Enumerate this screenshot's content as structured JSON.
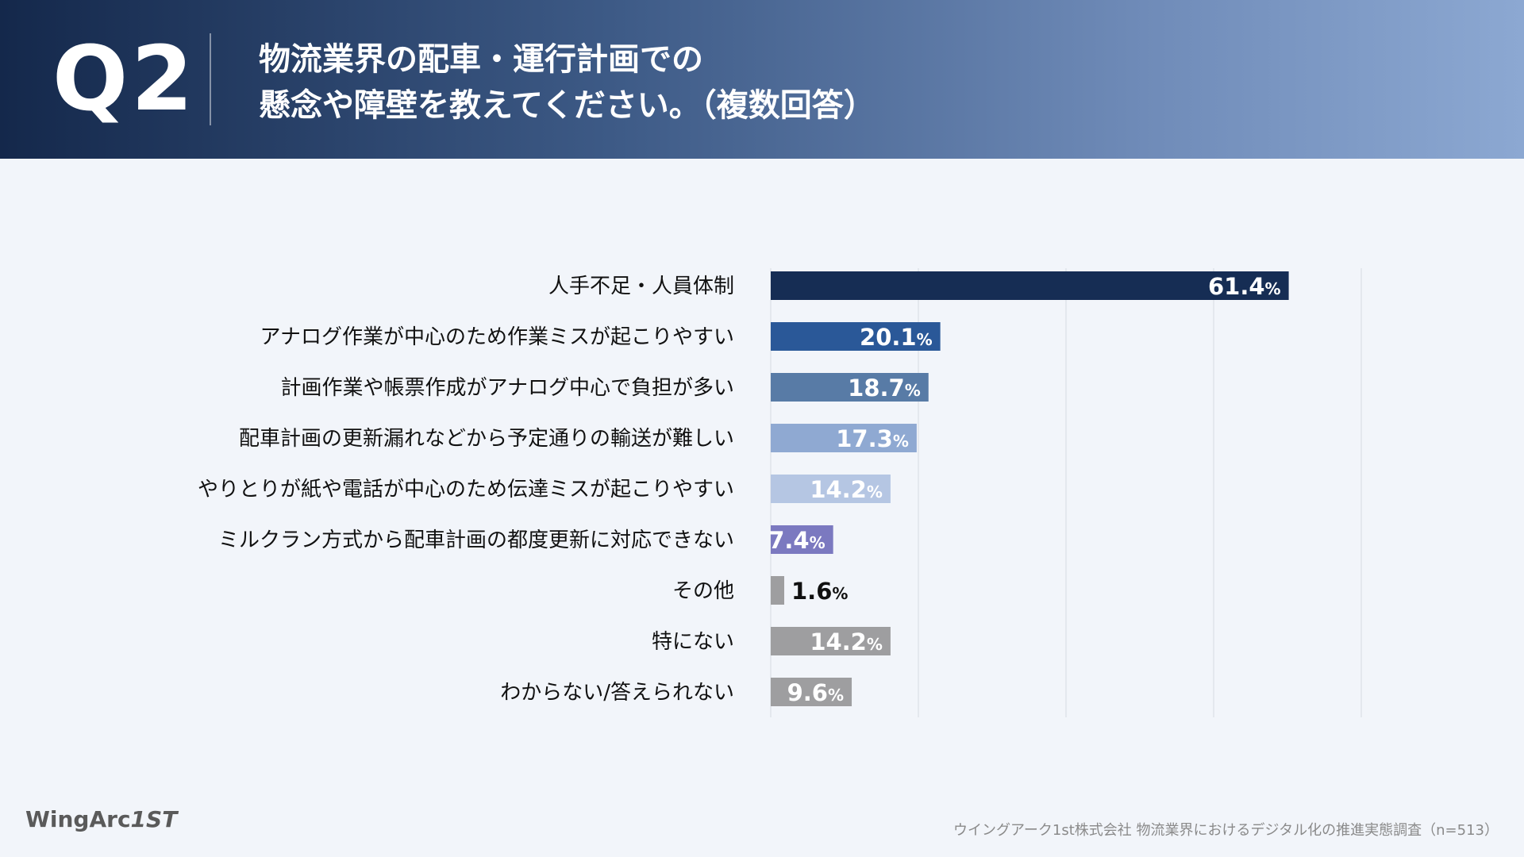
{
  "header": {
    "question_label": "Q2",
    "title_line1": "物流業界の配車・運行計画での",
    "title_line2": "懸念や障壁を教えてください。（複数回答）"
  },
  "chart_data": {
    "type": "bar",
    "orientation": "horizontal",
    "categories": [
      "人手不足・人員体制",
      "アナログ作業が中心のため作業ミスが起こりやすい",
      "計画作業や帳票作成がアナログ中心で負担が多い",
      "配車計画の更新漏れなどから予定通りの輸送が難しい",
      "やりとりが紙や電話が中心のため伝達ミスが起こりやすい",
      "ミルクラン方式から配車計画の都度更新に対応できない",
      "その他",
      "特にない",
      "わからない/答えられない"
    ],
    "values": [
      61.4,
      20.1,
      18.7,
      17.3,
      14.2,
      7.4,
      1.6,
      14.2,
      9.6
    ],
    "value_labels": [
      "61.4",
      "20.1",
      "18.7",
      "17.3",
      "14.2",
      "7.4",
      "1.6",
      "14.2",
      "9.6"
    ],
    "unit": "%",
    "colors": [
      "#162d54",
      "#2a5898",
      "#587ba6",
      "#8fa9d2",
      "#b5c6e3",
      "#7b79c0",
      "#9e9ea0",
      "#9e9ea0",
      "#9e9ea0"
    ],
    "label_inside": [
      true,
      true,
      true,
      true,
      true,
      true,
      false,
      true,
      true
    ],
    "xlim": [
      0,
      70
    ],
    "grid": true
  },
  "footer": {
    "logo_text": "WingArc",
    "logo_mark": "1ST",
    "source": "ウイングアーク1st株式会社 物流業界におけるデジタル化の推進実態調査（n=513）"
  }
}
